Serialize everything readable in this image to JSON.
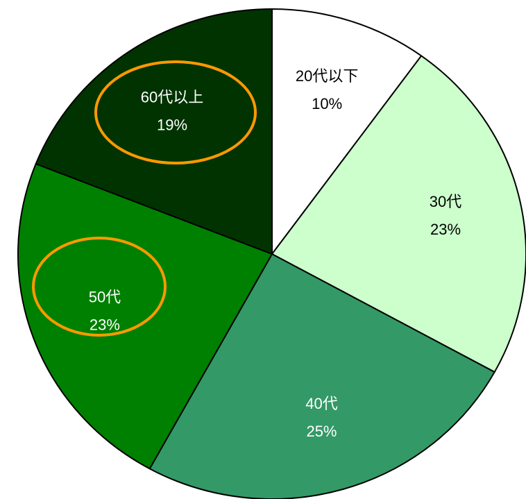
{
  "chart_data": {
    "type": "pie",
    "categories": [
      "20代以下",
      "30代",
      "40代",
      "50代",
      "60代以上"
    ],
    "values": [
      10,
      23,
      25,
      23,
      19
    ],
    "value_labels": [
      "10%",
      "23%",
      "25%",
      "23%",
      "19%"
    ],
    "colors": [
      "#ffffff",
      "#ccffcc",
      "#339966",
      "#008000",
      "#003300"
    ]
  }
}
